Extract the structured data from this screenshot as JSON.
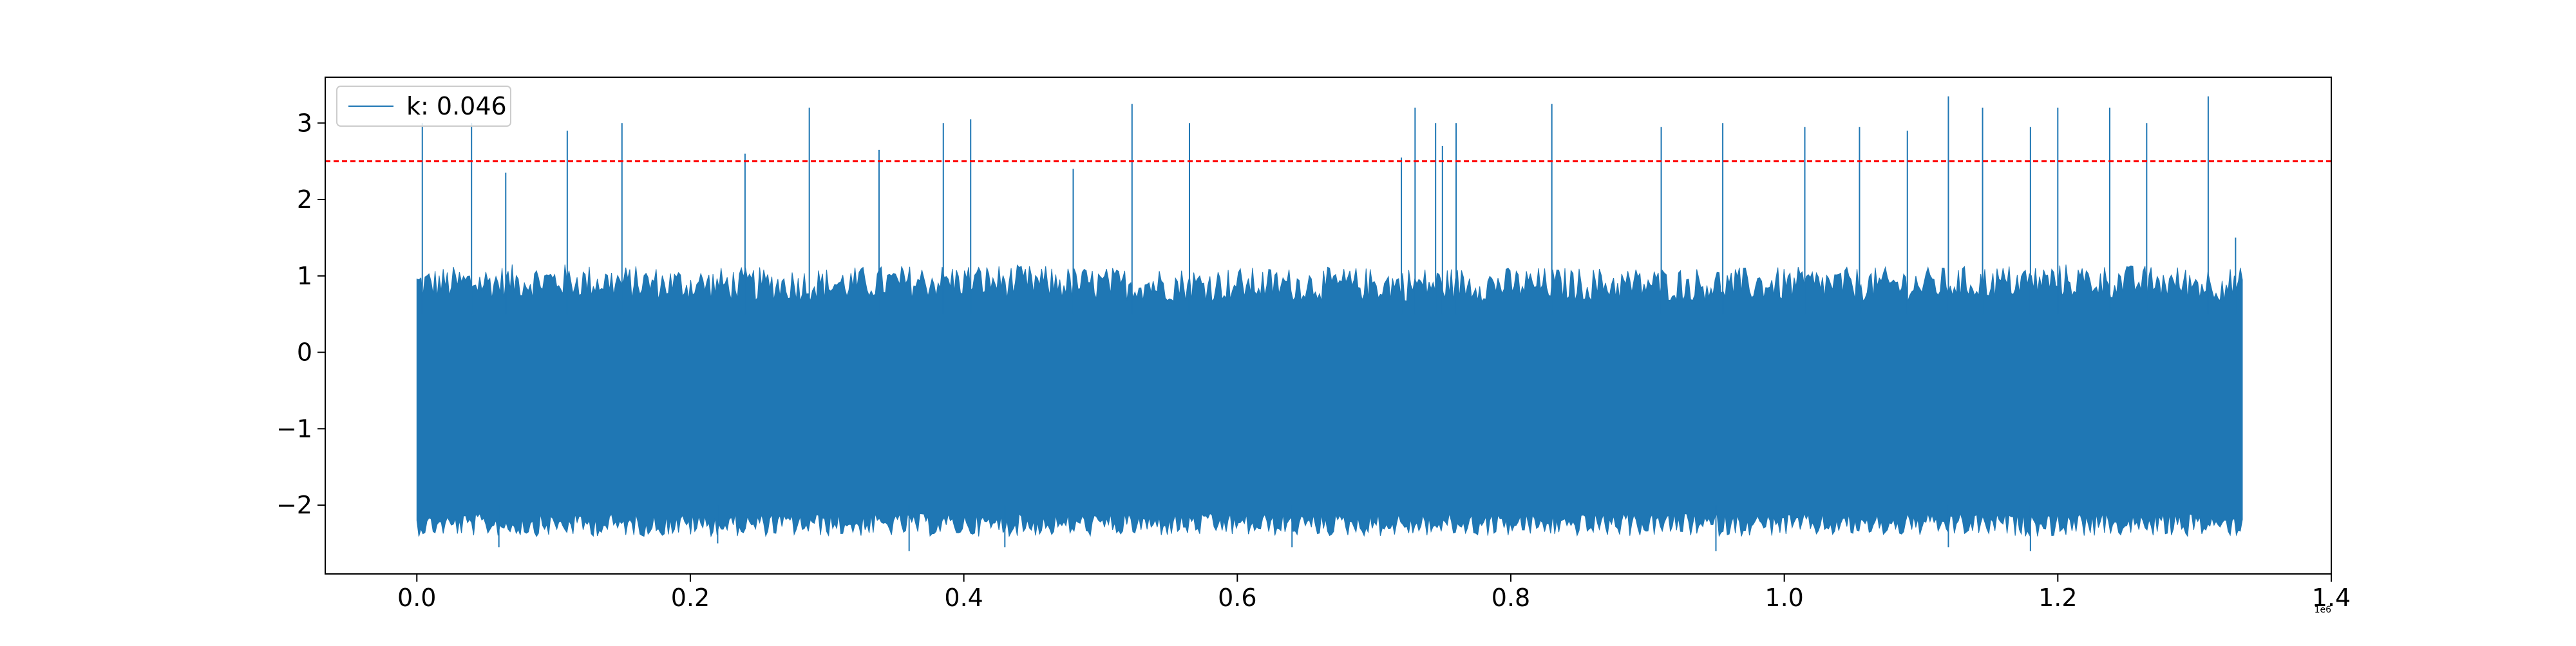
{
  "chart_data": {
    "type": "line",
    "title": "",
    "xlabel": "",
    "ylabel": "",
    "x_offset_text": "1e6",
    "xlim": [
      -0.067,
      1.4
    ],
    "ylim": [
      -2.9,
      3.6
    ],
    "x_ticks": [
      0.0,
      0.2,
      0.4,
      0.6,
      0.8,
      1.0,
      1.2,
      1.4
    ],
    "x_tick_labels": [
      "0.0",
      "0.2",
      "0.4",
      "0.6",
      "0.8",
      "1.0",
      "1.2",
      "1.4"
    ],
    "y_ticks": [
      -2,
      -1,
      0,
      1,
      2,
      3
    ],
    "y_tick_labels": [
      "−2",
      "−1",
      "0",
      "1",
      "2",
      "3"
    ],
    "grid": false,
    "legend_position": "top-left",
    "series": [
      {
        "name": "k: 0.046",
        "color": "#1f77b4",
        "x_range": [
          0.0,
          1.335
        ],
        "envelope": {
          "x": [
            0.0,
            0.1,
            0.2,
            0.3,
            0.4,
            0.5,
            0.6,
            0.7,
            0.8,
            0.9,
            1.0,
            1.1,
            1.2,
            1.335
          ],
          "upper": [
            0.8,
            0.85,
            0.8,
            0.8,
            0.85,
            0.8,
            0.8,
            0.8,
            0.8,
            0.8,
            0.8,
            0.8,
            0.85,
            0.8
          ],
          "lower": [
            -2.2,
            -2.2,
            -2.2,
            -2.2,
            -2.2,
            -2.2,
            -2.2,
            -2.2,
            -2.2,
            -2.2,
            -2.2,
            -2.2,
            -2.2,
            -2.2
          ]
        },
        "spikes": [
          {
            "x": 0.004,
            "y": 3.0
          },
          {
            "x": 0.04,
            "y": 3.0
          },
          {
            "x": 0.065,
            "y": 2.35
          },
          {
            "x": 0.11,
            "y": 2.9
          },
          {
            "x": 0.15,
            "y": 3.0
          },
          {
            "x": 0.24,
            "y": 2.6
          },
          {
            "x": 0.287,
            "y": 3.2
          },
          {
            "x": 0.338,
            "y": 2.65
          },
          {
            "x": 0.385,
            "y": 3.0
          },
          {
            "x": 0.405,
            "y": 3.05
          },
          {
            "x": 0.48,
            "y": 2.4
          },
          {
            "x": 0.523,
            "y": 3.25
          },
          {
            "x": 0.565,
            "y": 3.0
          },
          {
            "x": 0.72,
            "y": 2.55
          },
          {
            "x": 0.73,
            "y": 3.2
          },
          {
            "x": 0.745,
            "y": 3.0
          },
          {
            "x": 0.75,
            "y": 2.7
          },
          {
            "x": 0.76,
            "y": 3.0
          },
          {
            "x": 0.83,
            "y": 3.25
          },
          {
            "x": 0.91,
            "y": 2.95
          },
          {
            "x": 0.955,
            "y": 3.0
          },
          {
            "x": 1.015,
            "y": 2.95
          },
          {
            "x": 1.055,
            "y": 2.95
          },
          {
            "x": 1.09,
            "y": 2.9
          },
          {
            "x": 1.12,
            "y": 3.35
          },
          {
            "x": 1.145,
            "y": 3.2
          },
          {
            "x": 1.18,
            "y": 2.95
          },
          {
            "x": 1.2,
            "y": 3.2
          },
          {
            "x": 1.238,
            "y": 3.2
          },
          {
            "x": 1.265,
            "y": 3.0
          },
          {
            "x": 1.31,
            "y": 3.35
          },
          {
            "x": 1.33,
            "y": 1.5
          }
        ],
        "dips": [
          {
            "x": 0.06,
            "y": -2.55
          },
          {
            "x": 0.22,
            "y": -2.5
          },
          {
            "x": 0.36,
            "y": -2.6
          },
          {
            "x": 0.43,
            "y": -2.55
          },
          {
            "x": 0.64,
            "y": -2.55
          },
          {
            "x": 0.95,
            "y": -2.6
          },
          {
            "x": 1.12,
            "y": -2.55
          },
          {
            "x": 1.18,
            "y": -2.6
          }
        ]
      }
    ],
    "threshold_line": {
      "y": 2.5,
      "color": "#ff0000",
      "style": "dashed"
    }
  }
}
